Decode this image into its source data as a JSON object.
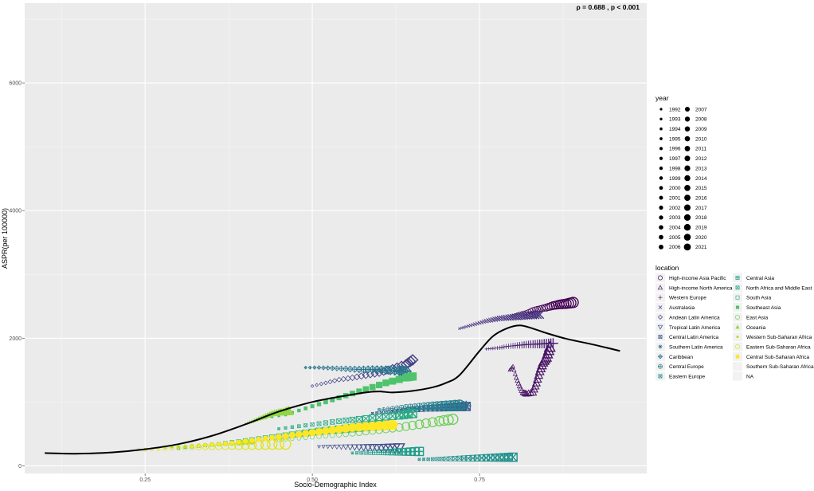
{
  "chart_data": {
    "type": "scatter",
    "xlabel": "Socio-Demographic Index",
    "ylabel": "ASPR(per 100000)",
    "annotation": "ρ = 0.688 ,  p < 0.001",
    "xlim": [
      0.07,
      1.0
    ],
    "ylim": [
      -120,
      7250
    ],
    "x_ticks": [
      0.25,
      0.5,
      0.75
    ],
    "x_tick_labels": [
      "0.25",
      "0.50",
      "0.75"
    ],
    "y_ticks": [
      0,
      2000,
      4000,
      6000
    ],
    "y_tick_labels": [
      "0",
      "2000",
      "4000",
      "6000"
    ],
    "grid": true,
    "legend_position": "right",
    "legend_year": {
      "title": "year",
      "years": [
        "1992",
        "1993",
        "1994",
        "1995",
        "1996",
        "1997",
        "1998",
        "1999",
        "2000",
        "2001",
        "2002",
        "2003",
        "2004",
        "2005",
        "2006",
        "2007",
        "2008",
        "2009",
        "2010",
        "2011",
        "2012",
        "2013",
        "2014",
        "2015",
        "2016",
        "2017",
        "2018",
        "2019",
        "2020",
        "2021"
      ]
    },
    "legend_location": {
      "title": "location",
      "entries": [
        {
          "name": "High-income Asia Pacific",
          "shape": "circle",
          "color": "#440154"
        },
        {
          "name": "High-income North America",
          "shape": "triangle",
          "color": "#471164"
        },
        {
          "name": "Western Europe",
          "shape": "plus",
          "color": "#482173"
        },
        {
          "name": "Australasia",
          "shape": "cross",
          "color": "#46307e"
        },
        {
          "name": "Andean Latin America",
          "shape": "diamond",
          "color": "#423f85"
        },
        {
          "name": "Tropical Latin America",
          "shape": "triangle-down",
          "color": "#3c4d8a"
        },
        {
          "name": "Central Latin America",
          "shape": "square-cross",
          "color": "#365c8d"
        },
        {
          "name": "Southern Latin America",
          "shape": "asterisk",
          "color": "#31688e"
        },
        {
          "name": "Caribbean",
          "shape": "diamond-plus",
          "color": "#2b758e"
        },
        {
          "name": "Central Europe",
          "shape": "circle-plus",
          "color": "#26828e"
        },
        {
          "name": "Eastern Europe",
          "shape": "square-x",
          "color": "#21918c"
        },
        {
          "name": "Central Asia",
          "shape": "square-plus",
          "color": "#1f9e89"
        },
        {
          "name": "North Africa and Middle East",
          "shape": "square-x",
          "color": "#25ab82"
        },
        {
          "name": "South Asia",
          "shape": "square-open",
          "color": "#35b779"
        },
        {
          "name": "Southeast Asia",
          "shape": "square",
          "color": "#4ec36b"
        },
        {
          "name": "East Asia",
          "shape": "circle",
          "color": "#6ece58"
        },
        {
          "name": "Oceania",
          "shape": "triangle-filled",
          "color": "#90d743"
        },
        {
          "name": "Western Sub-Saharan Africa",
          "shape": "dot",
          "color": "#b5de2b"
        },
        {
          "name": "Eastern Sub-Saharan Africa",
          "shape": "circle",
          "color": "#dde318"
        },
        {
          "name": "Central Sub-Saharan Africa",
          "shape": "circle-filled",
          "color": "#fde725"
        },
        {
          "name": "Southern Sub-Saharan Africa",
          "shape": "none",
          "color": "#dddddd"
        },
        {
          "name": "NA",
          "shape": "none",
          "color": "#dddddd"
        }
      ]
    },
    "expected_curve": {
      "x": [
        0.1,
        0.15,
        0.2,
        0.25,
        0.3,
        0.35,
        0.4,
        0.45,
        0.5,
        0.55,
        0.58,
        0.6,
        0.62,
        0.65,
        0.68,
        0.7,
        0.72,
        0.75,
        0.77,
        0.79,
        0.81,
        0.83,
        0.85,
        0.88,
        0.92,
        0.96
      ],
      "y": [
        200,
        190,
        210,
        260,
        340,
        470,
        650,
        850,
        1000,
        1100,
        1150,
        1165,
        1150,
        1175,
        1230,
        1300,
        1420,
        1800,
        2030,
        2150,
        2200,
        2150,
        2080,
        1990,
        1900,
        1800
      ]
    },
    "series": [
      {
        "name": "High-income Asia Pacific",
        "shape": "circle",
        "color": "#440154",
        "x": [
          0.8,
          0.81,
          0.82,
          0.83,
          0.84,
          0.85,
          0.86,
          0.87,
          0.88,
          0.89
        ],
        "y": [
          2350,
          2380,
          2400,
          2440,
          2460,
          2480,
          2510,
          2530,
          2540,
          2560
        ]
      },
      {
        "name": "High-income North America",
        "shape": "triangle",
        "color": "#471164",
        "x": [
          0.795,
          0.8,
          0.805,
          0.81,
          0.815,
          0.82,
          0.83,
          0.835,
          0.84,
          0.845,
          0.85,
          0.855
        ],
        "y": [
          1500,
          1560,
          1380,
          1250,
          1150,
          1130,
          1150,
          1300,
          1480,
          1620,
          1700,
          1860
        ]
      },
      {
        "name": "Western Europe",
        "shape": "plus",
        "color": "#482173",
        "x": [
          0.76,
          0.77,
          0.78,
          0.79,
          0.8,
          0.81,
          0.82,
          0.83,
          0.84,
          0.85,
          0.86
        ],
        "y": [
          1830,
          1840,
          1850,
          1870,
          1880,
          1890,
          1900,
          1905,
          1910,
          1915,
          1920
        ]
      },
      {
        "name": "Australasia",
        "shape": "cross",
        "color": "#46307e",
        "x": [
          0.72,
          0.73,
          0.74,
          0.75,
          0.76,
          0.77,
          0.78,
          0.79,
          0.8,
          0.81,
          0.82,
          0.83,
          0.84
        ],
        "y": [
          2150,
          2180,
          2210,
          2240,
          2270,
          2290,
          2310,
          2320,
          2330,
          2340,
          2350,
          2360,
          2370
        ]
      },
      {
        "name": "Andean Latin America",
        "shape": "diamond",
        "color": "#423f85",
        "x": [
          0.5,
          0.52,
          0.54,
          0.56,
          0.58,
          0.6,
          0.62,
          0.64,
          0.65
        ],
        "y": [
          1250,
          1300,
          1350,
          1380,
          1420,
          1460,
          1520,
          1590,
          1660
        ]
      },
      {
        "name": "Tropical Latin America",
        "shape": "triangle-down",
        "color": "#3c4d8a",
        "x": [
          0.51,
          0.53,
          0.55,
          0.57,
          0.59,
          0.61,
          0.63
        ],
        "y": [
          300,
          300,
          295,
          290,
          285,
          280,
          280
        ]
      },
      {
        "name": "Central Latin America",
        "shape": "square-cross",
        "color": "#365c8d",
        "x": [
          0.59,
          0.61,
          0.63,
          0.65,
          0.67,
          0.69,
          0.71,
          0.73
        ],
        "y": [
          820,
          840,
          860,
          880,
          900,
          910,
          920,
          930
        ]
      },
      {
        "name": "Southern Latin America",
        "shape": "asterisk",
        "color": "#31688e",
        "x": [
          0.62,
          0.64,
          0.66,
          0.68,
          0.7,
          0.72,
          0.73
        ],
        "y": [
          860,
          880,
          900,
          910,
          920,
          930,
          940
        ]
      },
      {
        "name": "Caribbean",
        "shape": "diamond-plus",
        "color": "#2b758e",
        "x": [
          0.49,
          0.51,
          0.53,
          0.55,
          0.57,
          0.59,
          0.61,
          0.63,
          0.64
        ],
        "y": [
          1540,
          1540,
          1530,
          1520,
          1510,
          1510,
          1500,
          1490,
          1480
        ]
      },
      {
        "name": "Central Europe",
        "shape": "circle-plus",
        "color": "#26828e",
        "x": [
          0.6,
          0.62,
          0.64,
          0.66,
          0.68,
          0.7,
          0.72
        ],
        "y": [
          880,
          900,
          920,
          930,
          940,
          945,
          950
        ]
      },
      {
        "name": "Eastern Europe",
        "shape": "square-x",
        "color": "#21918c",
        "x": [
          0.66,
          0.68,
          0.7,
          0.72,
          0.74,
          0.76,
          0.78,
          0.8
        ],
        "y": [
          100,
          105,
          110,
          115,
          120,
          125,
          130,
          135
        ]
      },
      {
        "name": "Central Asia",
        "shape": "square-plus",
        "color": "#1f9e89",
        "x": [
          0.56,
          0.58,
          0.6,
          0.62,
          0.64,
          0.66
        ],
        "y": [
          200,
          205,
          210,
          215,
          220,
          225
        ]
      },
      {
        "name": "North Africa and Middle East",
        "shape": "square-x",
        "color": "#25ab82",
        "x": [
          0.45,
          0.48,
          0.51,
          0.54,
          0.57,
          0.6,
          0.63,
          0.65
        ],
        "y": [
          580,
          620,
          660,
          700,
          730,
          760,
          790,
          820
        ]
      },
      {
        "name": "South Asia",
        "shape": "square-open",
        "color": "#35b779",
        "x": [
          0.3,
          0.33,
          0.36,
          0.39,
          0.42,
          0.45,
          0.48,
          0.51,
          0.54,
          0.57,
          0.6
        ],
        "y": [
          280,
          310,
          340,
          380,
          420,
          460,
          500,
          540,
          570,
          600,
          630
        ]
      },
      {
        "name": "Southeast Asia",
        "shape": "square",
        "color": "#4ec36b",
        "x": [
          0.43,
          0.46,
          0.49,
          0.52,
          0.55,
          0.58,
          0.61,
          0.64,
          0.65
        ],
        "y": [
          750,
          800,
          900,
          1000,
          1100,
          1200,
          1300,
          1380,
          1400
        ]
      },
      {
        "name": "East Asia",
        "shape": "circle",
        "color": "#6ece58",
        "x": [
          0.45,
          0.48,
          0.51,
          0.54,
          0.57,
          0.6,
          0.63,
          0.66,
          0.69,
          0.71
        ],
        "y": [
          400,
          430,
          460,
          490,
          520,
          560,
          600,
          650,
          700,
          730
        ]
      },
      {
        "name": "Oceania",
        "shape": "triangle-filled",
        "color": "#90d743",
        "x": [
          0.4,
          0.41,
          0.42,
          0.43,
          0.44,
          0.45,
          0.46,
          0.465
        ],
        "y": [
          660,
          700,
          740,
          780,
          820,
          840,
          850,
          860
        ]
      },
      {
        "name": "Western Sub-Saharan Africa",
        "shape": "dot",
        "color": "#b5de2b",
        "x": [
          0.24,
          0.27,
          0.3,
          0.33,
          0.36,
          0.39,
          0.41
        ],
        "y": [
          260,
          280,
          300,
          320,
          340,
          360,
          380
        ]
      },
      {
        "name": "Eastern Sub-Saharan Africa",
        "shape": "circle",
        "color": "#dde318",
        "x": [
          0.25,
          0.28,
          0.31,
          0.34,
          0.37,
          0.4,
          0.43,
          0.46
        ],
        "y": [
          250,
          270,
          285,
          300,
          310,
          320,
          330,
          340
        ]
      },
      {
        "name": "Central Sub-Saharan Africa",
        "shape": "circle-filled",
        "color": "#fde725",
        "x": [
          0.32,
          0.35,
          0.38,
          0.41,
          0.44,
          0.47,
          0.5,
          0.53,
          0.56,
          0.59,
          0.62
        ],
        "y": [
          300,
          330,
          360,
          400,
          440,
          480,
          520,
          560,
          600,
          620,
          640
        ]
      }
    ]
  }
}
